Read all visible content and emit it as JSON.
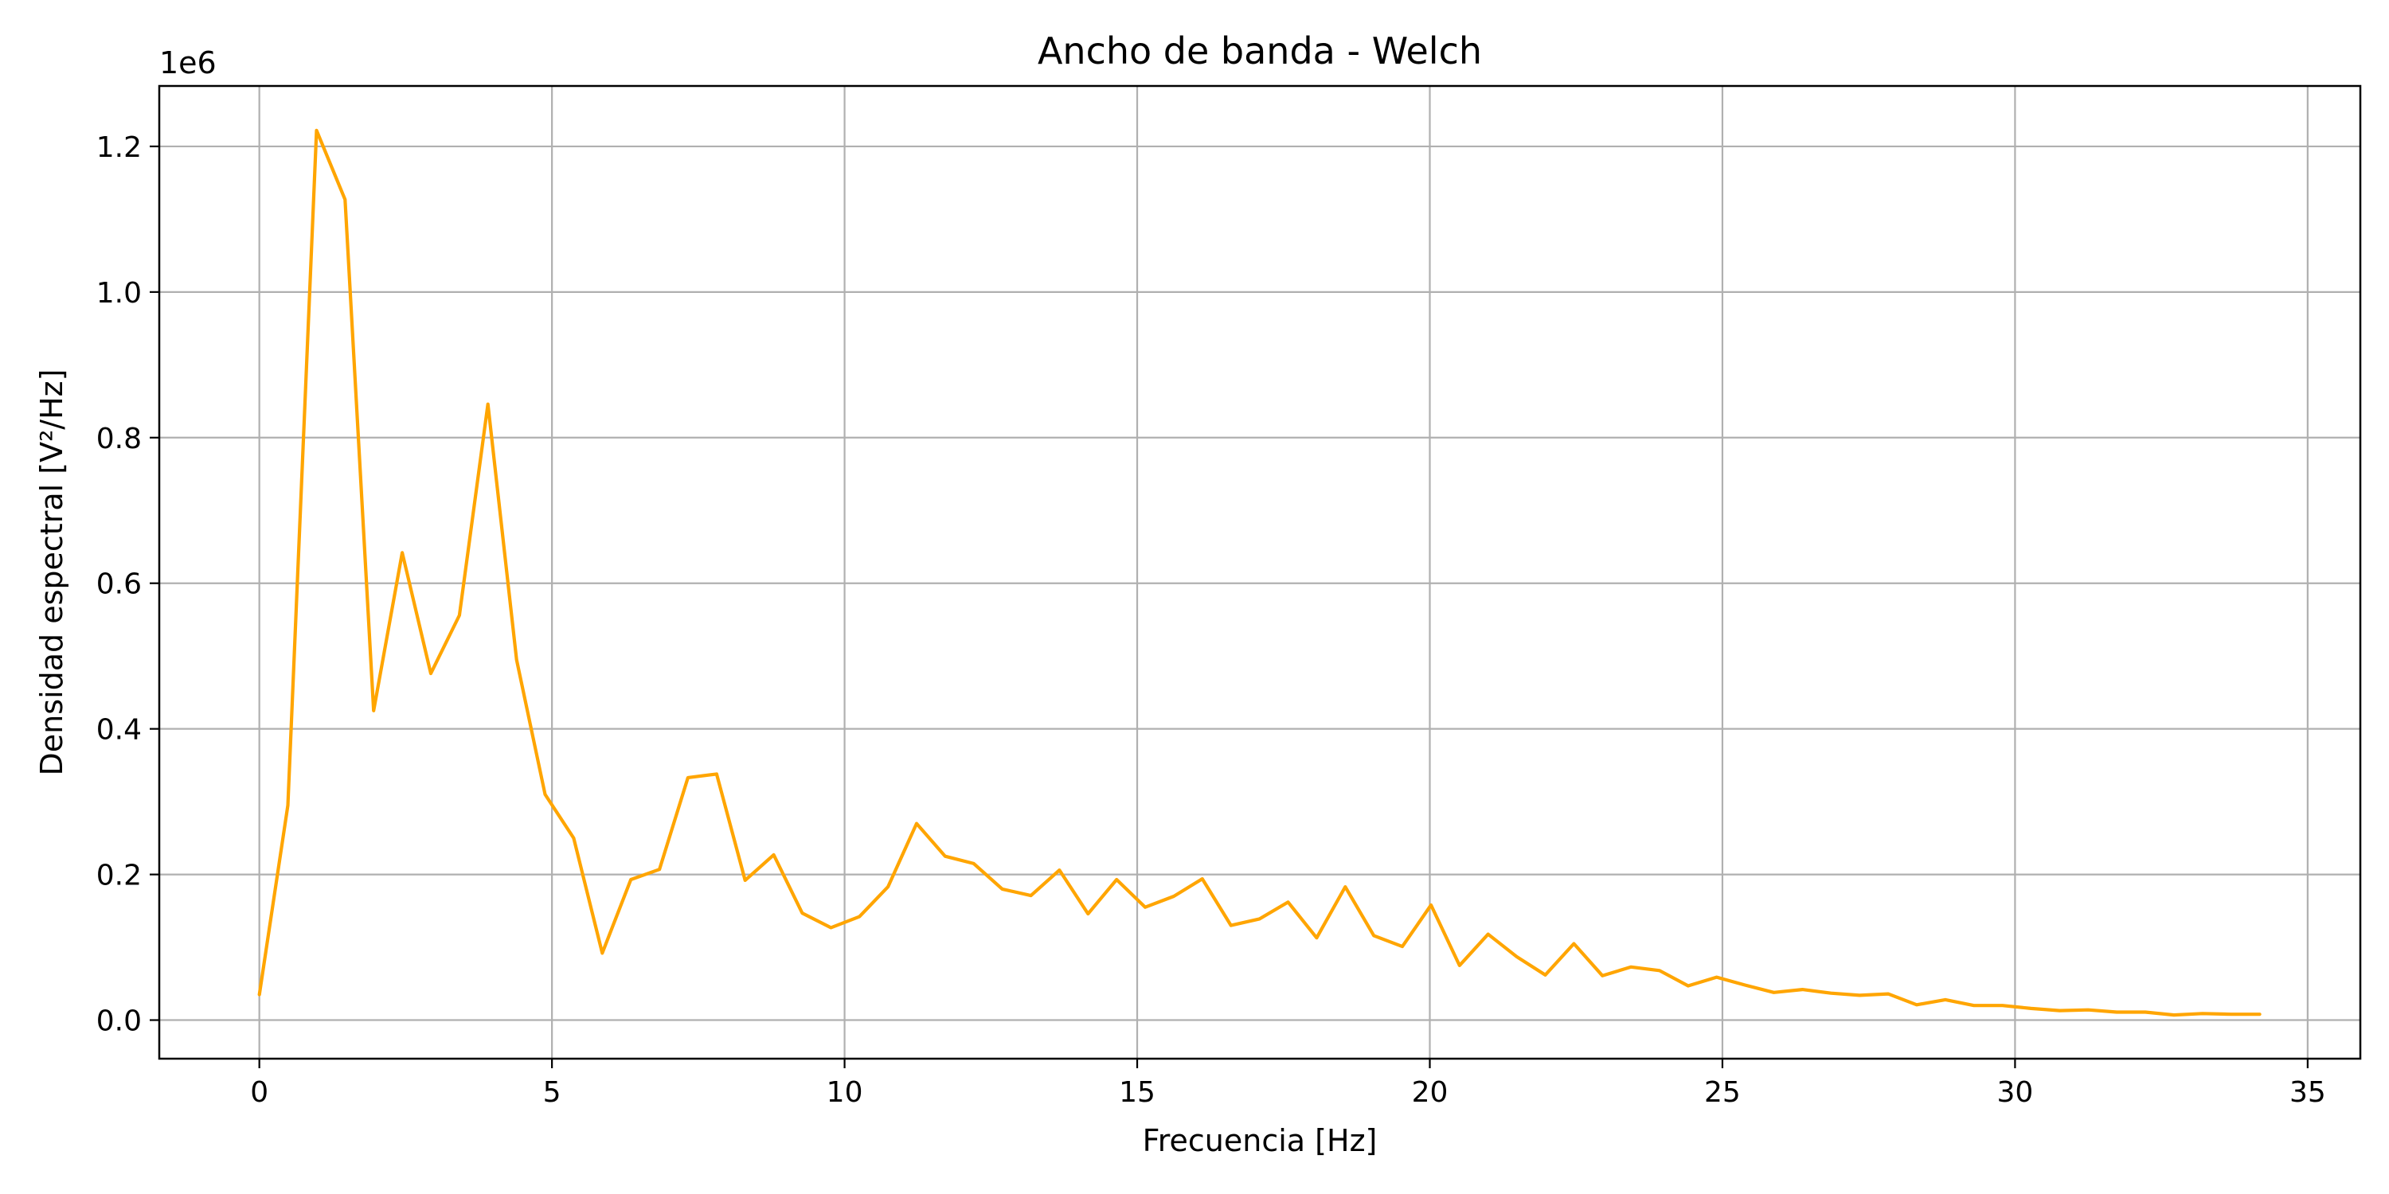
{
  "chart_data": {
    "type": "line",
    "title": "Ancho de banda - Welch",
    "xlabel": "Frecuencia [Hz]",
    "ylabel": "Densidad espectral [V²/Hz]",
    "y_offset_text": "1e6",
    "xlim": [
      -1.71,
      35.9
    ],
    "ylim": [
      -53000,
      1283000
    ],
    "x_ticks": [
      0,
      5,
      10,
      15,
      20,
      25,
      30,
      35
    ],
    "x_tick_labels": [
      "0",
      "5",
      "10",
      "15",
      "20",
      "25",
      "30",
      "35"
    ],
    "y_ticks": [
      0,
      200000,
      400000,
      600000,
      800000,
      1000000,
      1200000
    ],
    "y_tick_labels": [
      "0.0",
      "0.2",
      "0.4",
      "0.6",
      "0.8",
      "1.0",
      "1.2"
    ],
    "grid": true,
    "legend": "none",
    "series": [
      {
        "color": "#ffa500",
        "x": [
          0,
          0.488,
          0.977,
          1.465,
          1.953,
          2.441,
          2.93,
          3.418,
          3.906,
          4.395,
          4.883,
          5.371,
          5.859,
          6.348,
          6.836,
          7.324,
          7.813,
          8.301,
          8.789,
          9.277,
          9.766,
          10.254,
          10.742,
          11.23,
          11.719,
          12.207,
          12.695,
          13.184,
          13.672,
          14.16,
          14.648,
          15.137,
          15.625,
          16.113,
          16.602,
          17.09,
          17.578,
          18.066,
          18.555,
          19.043,
          19.531,
          20.02,
          20.508,
          20.996,
          21.484,
          21.973,
          22.461,
          22.949,
          23.438,
          23.926,
          24.414,
          24.902,
          25.391,
          25.879,
          26.367,
          26.855,
          27.344,
          27.832,
          28.32,
          28.809,
          29.297,
          29.785,
          30.273,
          30.762,
          31.25,
          31.738,
          32.227,
          32.715,
          33.203,
          33.691,
          34.18
        ],
        "y": [
          35000,
          295000,
          1222000,
          1127000,
          425000,
          642000,
          476000,
          556000,
          846000,
          495000,
          310000,
          250000,
          92000,
          193000,
          207000,
          333000,
          338000,
          192000,
          227000,
          147000,
          127000,
          142000,
          183000,
          270000,
          225000,
          215000,
          180000,
          171000,
          206000,
          146000,
          193000,
          155000,
          170000,
          194000,
          130000,
          139000,
          162000,
          113000,
          183000,
          116000,
          101000,
          158000,
          75000,
          118000,
          87000,
          62000,
          105000,
          61000,
          73000,
          68000,
          47000,
          59000,
          48000,
          38000,
          42000,
          37000,
          34000,
          36000,
          21000,
          28000,
          20000,
          20000,
          16000,
          13000,
          14000,
          11000,
          11000,
          7000,
          9000,
          8000,
          8000
        ]
      }
    ]
  }
}
